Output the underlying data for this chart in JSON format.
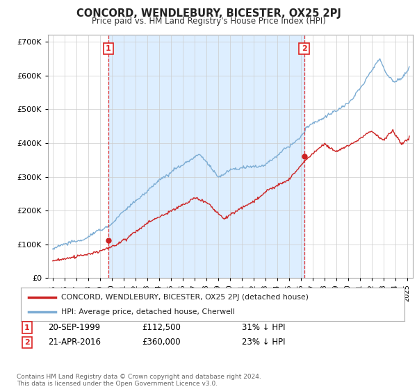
{
  "title": "CONCORD, WENDLEBURY, BICESTER, OX25 2PJ",
  "subtitle": "Price paid vs. HM Land Registry's House Price Index (HPI)",
  "hpi_label": "HPI: Average price, detached house, Cherwell",
  "price_label": "CONCORD, WENDLEBURY, BICESTER, OX25 2PJ (detached house)",
  "transaction1": {
    "label": "1",
    "date": "20-SEP-1999",
    "price": "£112,500",
    "note": "31% ↓ HPI"
  },
  "transaction2": {
    "label": "2",
    "date": "21-APR-2016",
    "price": "£360,000",
    "note": "23% ↓ HPI"
  },
  "transaction1_year": 1999.72,
  "transaction1_price": 112500,
  "transaction2_year": 2016.3,
  "transaction2_price": 360000,
  "vline1_year": 1999.72,
  "vline2_year": 2016.3,
  "ylim": [
    0,
    720000
  ],
  "xlim_start": 1994.6,
  "xlim_end": 2025.5,
  "price_color": "#cc2222",
  "hpi_color": "#7dadd4",
  "vline_color": "#dd2222",
  "shade_color": "#ddeeff",
  "footer": "Contains HM Land Registry data © Crown copyright and database right 2024.\nThis data is licensed under the Open Government Licence v3.0.",
  "background_color": "#ffffff",
  "grid_color": "#cccccc"
}
